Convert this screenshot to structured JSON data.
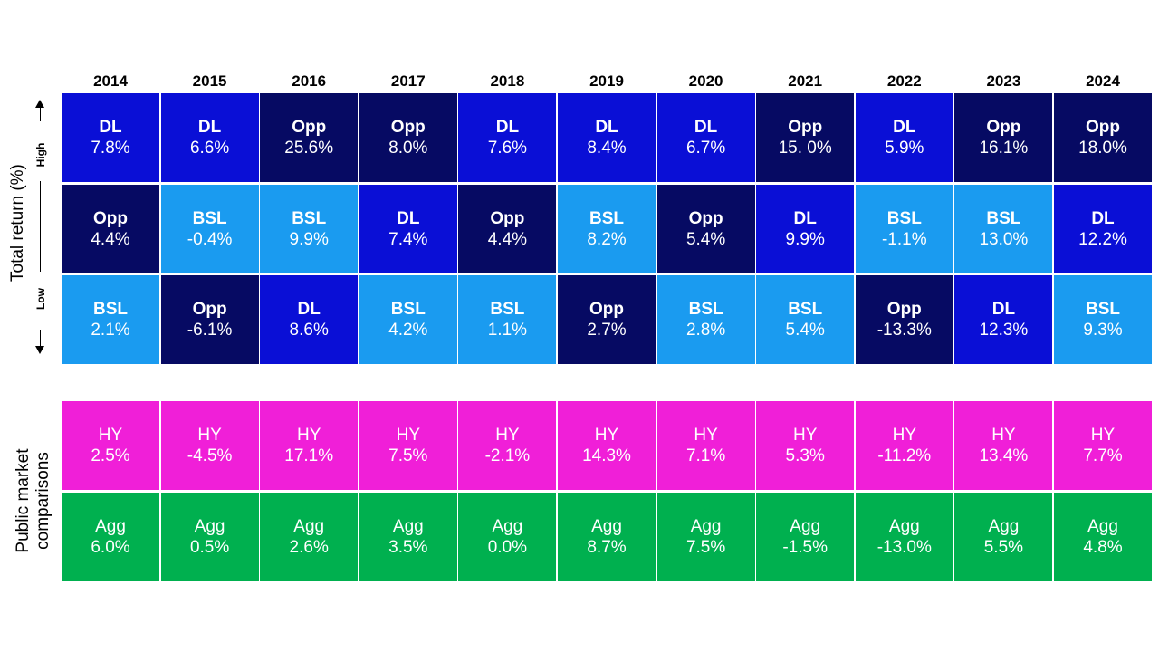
{
  "colors": {
    "DL": "#0a0fd6",
    "Opp": "#060a63",
    "BSL": "#1a9bf0",
    "HY": "#f01fd8",
    "Agg": "#00b04f"
  },
  "axis": {
    "title": "Total return (%)",
    "high": "High",
    "low": "Low",
    "public_title_line1": "Public market",
    "public_title_line2": "comparisons"
  },
  "chart_data": {
    "type": "table",
    "years": [
      "2014",
      "2015",
      "2016",
      "2017",
      "2018",
      "2019",
      "2020",
      "2021",
      "2022",
      "2023",
      "2024"
    ],
    "ranked_rows": [
      [
        {
          "name": "DL",
          "value": "7.8%"
        },
        {
          "name": "DL",
          "value": "6.6%"
        },
        {
          "name": "Opp",
          "value": "25.6%"
        },
        {
          "name": "Opp",
          "value": "8.0%"
        },
        {
          "name": "DL",
          "value": "7.6%"
        },
        {
          "name": "DL",
          "value": "8.4%"
        },
        {
          "name": "DL",
          "value": "6.7%"
        },
        {
          "name": "Opp",
          "value": "15. 0%"
        },
        {
          "name": "DL",
          "value": "5.9%"
        },
        {
          "name": "Opp",
          "value": "16.1%"
        },
        {
          "name": "Opp",
          "value": "18.0%"
        }
      ],
      [
        {
          "name": "Opp",
          "value": "4.4%"
        },
        {
          "name": "BSL",
          "value": "-0.4%"
        },
        {
          "name": "BSL",
          "value": "9.9%"
        },
        {
          "name": "DL",
          "value": "7.4%"
        },
        {
          "name": "Opp",
          "value": "4.4%"
        },
        {
          "name": "BSL",
          "value": "8.2%"
        },
        {
          "name": "Opp",
          "value": "5.4%"
        },
        {
          "name": "DL",
          "value": "9.9%"
        },
        {
          "name": "BSL",
          "value": "-1.1%"
        },
        {
          "name": "BSL",
          "value": "13.0%"
        },
        {
          "name": "DL",
          "value": "12.2%"
        }
      ],
      [
        {
          "name": "BSL",
          "value": "2.1%"
        },
        {
          "name": "Opp",
          "value": "-6.1%"
        },
        {
          "name": "DL",
          "value": "8.6%"
        },
        {
          "name": "BSL",
          "value": "4.2%"
        },
        {
          "name": "BSL",
          "value": "1.1%"
        },
        {
          "name": "Opp",
          "value": "2.7%"
        },
        {
          "name": "BSL",
          "value": "2.8%"
        },
        {
          "name": "BSL",
          "value": "5.4%"
        },
        {
          "name": "Opp",
          "value": "-13.3%"
        },
        {
          "name": "DL",
          "value": "12.3%"
        },
        {
          "name": "BSL",
          "value": "9.3%"
        }
      ]
    ],
    "public_rows": [
      [
        {
          "name": "HY",
          "value": "2.5%"
        },
        {
          "name": "HY",
          "value": "-4.5%"
        },
        {
          "name": "HY",
          "value": "17.1%"
        },
        {
          "name": "HY",
          "value": "7.5%"
        },
        {
          "name": "HY",
          "value": "-2.1%"
        },
        {
          "name": "HY",
          "value": "14.3%"
        },
        {
          "name": "HY",
          "value": "7.1%"
        },
        {
          "name": "HY",
          "value": "5.3%"
        },
        {
          "name": "HY",
          "value": "-11.2%"
        },
        {
          "name": "HY",
          "value": "13.4%"
        },
        {
          "name": "HY",
          "value": "7.7%"
        }
      ],
      [
        {
          "name": "Agg",
          "value": "6.0%"
        },
        {
          "name": "Agg",
          "value": "0.5%"
        },
        {
          "name": "Agg",
          "value": "2.6%"
        },
        {
          "name": "Agg",
          "value": "3.5%"
        },
        {
          "name": "Agg",
          "value": "0.0%"
        },
        {
          "name": "Agg",
          "value": "8.7%"
        },
        {
          "name": "Agg",
          "value": "7.5%"
        },
        {
          "name": "Agg",
          "value": "-1.5%"
        },
        {
          "name": "Agg",
          "value": "-13.0%"
        },
        {
          "name": "Agg",
          "value": "5.5%"
        },
        {
          "name": "Agg",
          "value": "4.8%"
        }
      ]
    ]
  }
}
